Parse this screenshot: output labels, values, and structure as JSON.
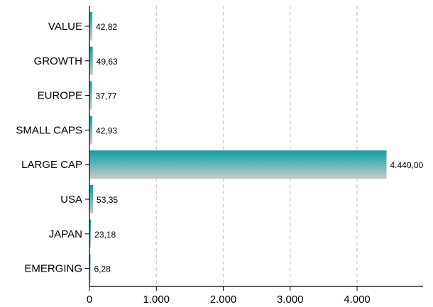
{
  "colors": {
    "bar_top": "#0d9fa6",
    "bar_bottom": "#c9c9c9",
    "grid": "#c8c8c8",
    "axis": "#000000"
  },
  "chart_data": {
    "type": "bar",
    "orientation": "horizontal",
    "categories": [
      "VALUE",
      "GROWTH",
      "EUROPE",
      "SMALL CAPS",
      "LARGE CAP",
      "USA",
      "JAPAN",
      "EMERGING"
    ],
    "values": [
      42.82,
      49.63,
      37.77,
      42.93,
      4440.0,
      53.35,
      23.18,
      6.28
    ],
    "value_labels": [
      "42,82",
      "49,63",
      "37,77",
      "42,93",
      "4.440,00",
      "53,35",
      "23,18",
      "6,28"
    ],
    "xticks": [
      0,
      1000,
      2000,
      3000,
      4000
    ],
    "xtick_labels": [
      "0",
      "1.000",
      "2.000",
      "3.000",
      "4.000"
    ],
    "xlim": [
      0,
      5000
    ],
    "grid": "vertical dashed",
    "legend": "none"
  }
}
